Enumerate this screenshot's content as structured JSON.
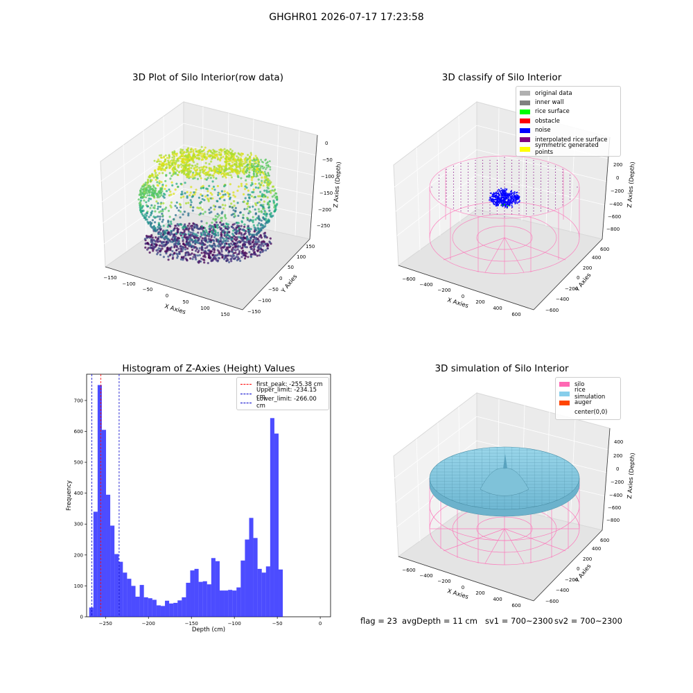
{
  "suptitle": "GHGHR01 2026-07-17 17:23:58",
  "footer": {
    "flag": "flag = 23",
    "avg_depth": "avgDepth = 11 cm",
    "sv1": "sv1 = 700~2300",
    "sv2": "sv2 = 700~2300"
  },
  "colors": {
    "hist_bar": "#0000ff",
    "first_peak_line": "#ff0000",
    "limit_lines": "#0000cc",
    "silo_wire": "#ff69b4",
    "rice_sim": "#87ceeb",
    "auger": "#ff4500",
    "noise": "#0000ff",
    "pane_light": "#f2f2f2",
    "pane_mid": "#e6e6e6"
  },
  "chart_data": [
    {
      "type": "scatter",
      "projection": "3d",
      "title": "3D Plot of Silo Interior(row data)",
      "xlabel": "X Axies",
      "ylabel": "Y Axies",
      "zlabel": "Z Axies (Depth)",
      "x_ticks": [
        "−150",
        "−100",
        "−50",
        "0",
        "50",
        "100",
        "150"
      ],
      "y_ticks": [
        "−150",
        "−100",
        "−50",
        "0",
        "50",
        "100",
        "150"
      ],
      "z_ticks": [
        "0",
        "−50",
        "−100",
        "−150",
        "−200",
        "−250"
      ],
      "xlim": [
        -170,
        170
      ],
      "ylim": [
        -170,
        170
      ],
      "zlim": [
        -275,
        5
      ],
      "colormap": "viridis",
      "description_values": {
        "upper_ring_z": [
          -50,
          -20
        ],
        "lower_bowl_z": [
          -270,
          -230
        ]
      }
    },
    {
      "type": "scatter",
      "projection": "3d",
      "title": "3D classify of Silo Interior",
      "xlabel": "X Axies",
      "ylabel": "Y Axies",
      "zlabel": "Z Axies (Depth)",
      "x_ticks": [
        "−600",
        "−400",
        "−200",
        "0",
        "200",
        "400",
        "600"
      ],
      "y_ticks": [
        "−600",
        "−400",
        "−200",
        "0",
        "200",
        "400",
        "600"
      ],
      "z_ticks": [
        "200",
        "0",
        "−200",
        "−400",
        "−600",
        "−800"
      ],
      "legend": [
        {
          "label": "original data",
          "color": "#b0b0b0"
        },
        {
          "label": "inner wall",
          "color": "#808080"
        },
        {
          "label": "rice surface",
          "color": "#00ff00"
        },
        {
          "label": "obstacle",
          "color": "#ff0000"
        },
        {
          "label": "noise",
          "color": "#0000ff"
        },
        {
          "label": "interpolated rice surface",
          "color": "#800080"
        },
        {
          "label": "symmetric generated points",
          "color": "#ffff00"
        }
      ]
    },
    {
      "type": "bar",
      "title": "Histogram of Z-Axies (Height) Values",
      "xlabel": "Depth (cm)",
      "ylabel": "Frequency",
      "xlim": [
        -272,
        12
      ],
      "ylim": [
        0,
        785
      ],
      "x_ticks": [
        -250,
        -200,
        -150,
        -100,
        -50,
        0
      ],
      "y_ticks": [
        0,
        100,
        200,
        300,
        400,
        500,
        600,
        700
      ],
      "bin_start": -269,
      "bin_width": 4.9,
      "values": [
        30,
        340,
        750,
        605,
        395,
        295,
        203,
        178,
        143,
        123,
        100,
        65,
        103,
        63,
        60,
        55,
        37,
        35,
        52,
        43,
        45,
        53,
        63,
        110,
        150,
        155,
        113,
        115,
        105,
        190,
        180,
        85,
        85,
        87,
        85,
        95,
        182,
        250,
        320,
        255,
        155,
        143,
        163,
        643,
        593,
        153
      ],
      "vlines": [
        {
          "label": "first_peak: -255.38 cm",
          "x": -255.38,
          "color": "#ff0000"
        },
        {
          "label": "Upper_limit: -234.15 cm",
          "x": -234.15,
          "color": "#0000cc"
        },
        {
          "label": "Lower_limit: -266.00 cm",
          "x": -266.0,
          "color": "#0000cc"
        }
      ]
    },
    {
      "type": "surface",
      "projection": "3d",
      "title": "3D simulation of Silo Interior",
      "xlabel": "X Axies",
      "ylabel": "Y Axies",
      "zlabel": "Z Axies (Depth)",
      "x_ticks": [
        "−600",
        "−400",
        "−200",
        "0",
        "200",
        "400",
        "600"
      ],
      "y_ticks": [
        "−600",
        "−400",
        "−200",
        "0",
        "200",
        "400",
        "600"
      ],
      "z_ticks": [
        "400",
        "200",
        "0",
        "−200",
        "−400",
        "−600",
        "−800"
      ],
      "legend": [
        {
          "label": "silo",
          "color": "#ff69b4"
        },
        {
          "label": "rice simulation",
          "color": "#87ceeb"
        },
        {
          "label": "auger",
          "color": "#ff4500"
        },
        {
          "label": "center(0,0)",
          "color": ""
        }
      ]
    }
  ]
}
